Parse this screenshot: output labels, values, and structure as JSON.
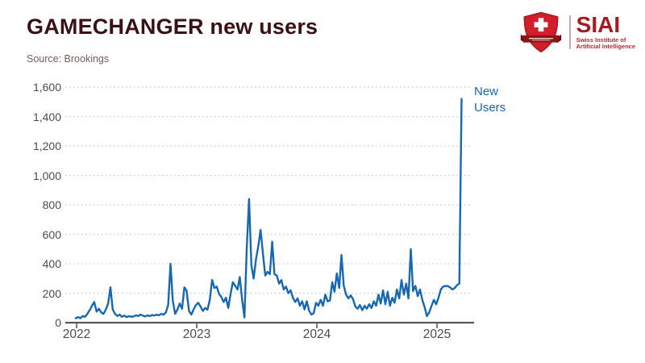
{
  "header": {
    "title": "GAMECHANGER new users",
    "source": "Source: Brookings"
  },
  "logo": {
    "acronym": "SIAI",
    "subtitle_line1": "Swiss Institute of",
    "subtitle_line2": "Artificial Intelligence",
    "shield_red": "#d31f2b",
    "ribbon_dark_red": "#8c1518",
    "wordmark_red": "#a6191f"
  },
  "chart_data": {
    "type": "line",
    "title": "GAMECHANGER new users",
    "series_label": "New Users",
    "x_start": "2022-01",
    "frequency": "weekly",
    "x_tick_labels": [
      "2022",
      "2023",
      "2024",
      "2025"
    ],
    "y_tick_labels": [
      "0",
      "200",
      "400",
      "600",
      "800",
      "1,000",
      "1,200",
      "1,400",
      "1,600"
    ],
    "y_ticks": [
      0,
      200,
      400,
      600,
      800,
      1000,
      1200,
      1400,
      1600
    ],
    "ylim": [
      0,
      1600
    ],
    "grid": "horizontal-dotted",
    "line_color": "#1668b2",
    "axis_color": "#58595b",
    "peak_value": 1520,
    "values": [
      30,
      38,
      30,
      45,
      40,
      60,
      85,
      115,
      140,
      75,
      95,
      70,
      60,
      90,
      130,
      240,
      90,
      60,
      45,
      55,
      40,
      48,
      38,
      45,
      40,
      42,
      50,
      45,
      55,
      48,
      42,
      50,
      45,
      52,
      48,
      55,
      50,
      60,
      55,
      70,
      120,
      400,
      150,
      60,
      90,
      130,
      95,
      240,
      215,
      80,
      55,
      90,
      120,
      135,
      110,
      80,
      100,
      88,
      155,
      290,
      235,
      245,
      195,
      175,
      140,
      170,
      100,
      195,
      275,
      250,
      225,
      310,
      155,
      35,
      500,
      840,
      390,
      300,
      430,
      520,
      630,
      470,
      320,
      345,
      330,
      550,
      330,
      320,
      265,
      290,
      225,
      245,
      200,
      220,
      170,
      140,
      165,
      115,
      145,
      90,
      145,
      80,
      55,
      65,
      135,
      115,
      155,
      115,
      190,
      145,
      150,
      275,
      210,
      335,
      235,
      460,
      250,
      190,
      165,
      185,
      160,
      110,
      95,
      120,
      85,
      115,
      95,
      125,
      100,
      145,
      115,
      190,
      130,
      220,
      125,
      210,
      115,
      170,
      135,
      225,
      165,
      290,
      190,
      265,
      165,
      500,
      215,
      250,
      180,
      225,
      155,
      105,
      45,
      70,
      115,
      155,
      125,
      170,
      225,
      245,
      250,
      248,
      240,
      225,
      235,
      255,
      265,
      1520
    ]
  }
}
